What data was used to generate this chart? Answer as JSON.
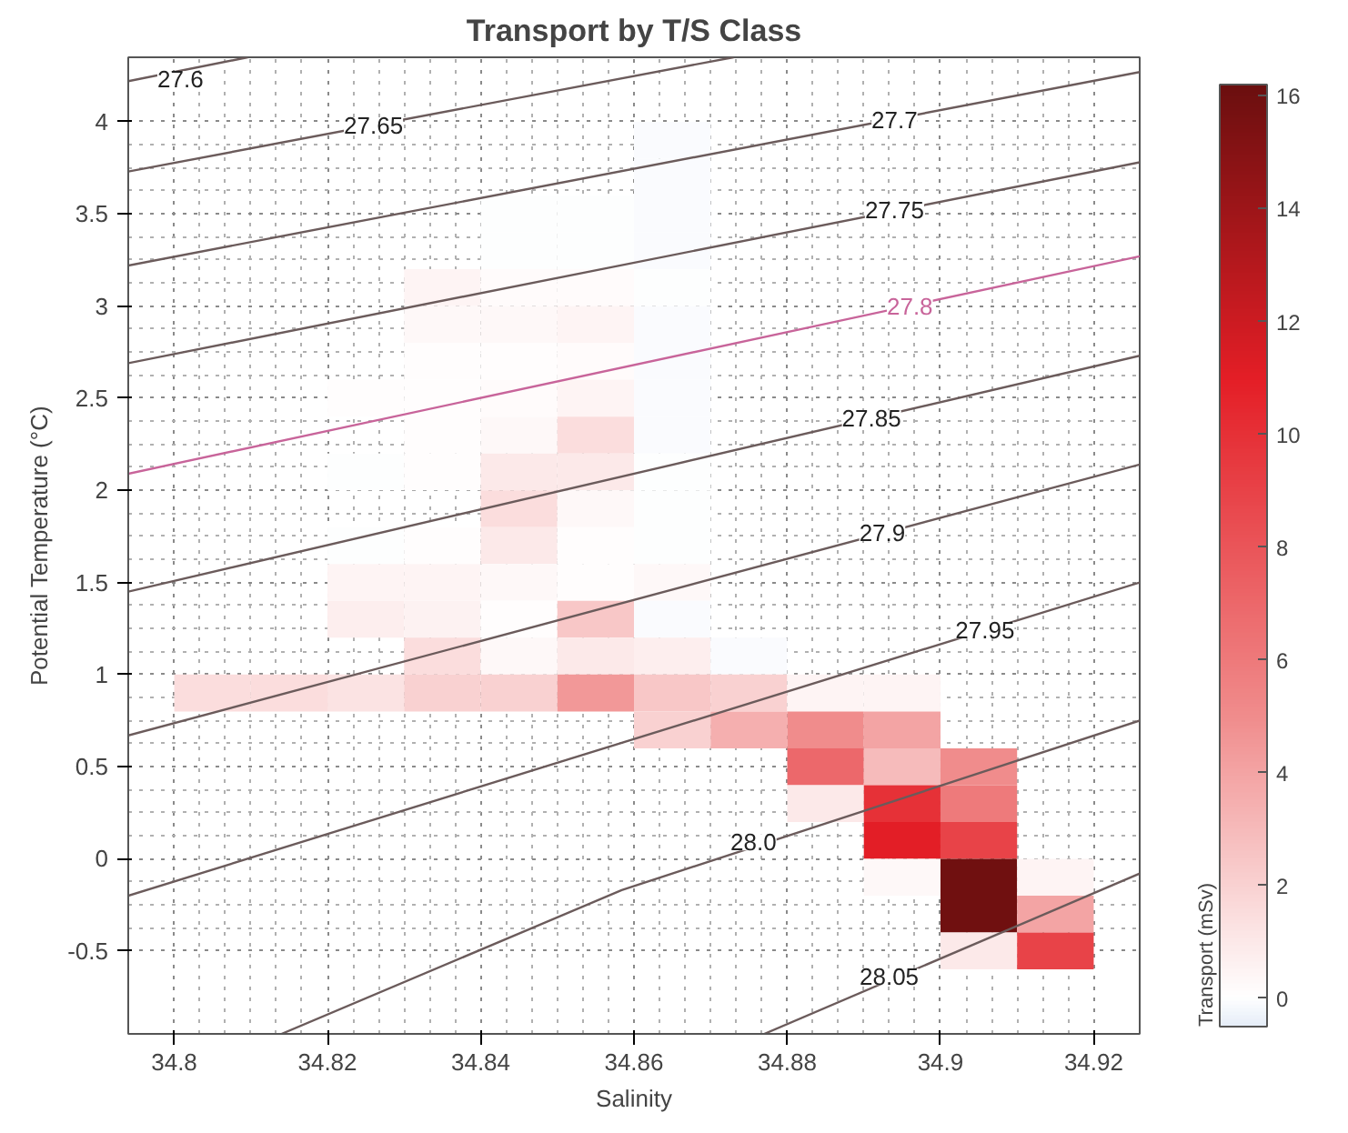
{
  "chart_data": {
    "type": "heatmap",
    "title": "Transport by T/S Class",
    "xlabel": "Salinity",
    "ylabel": "Potential Temperature (°C)",
    "clabel": "Transport (mSv)",
    "x": [
      34.805,
      34.815,
      34.825,
      34.835,
      34.845,
      34.855,
      34.865,
      34.875,
      34.885,
      34.895,
      34.905,
      34.915
    ],
    "y": [
      3.9,
      3.7,
      3.5,
      3.3,
      3.1,
      2.9,
      2.7,
      2.5,
      2.3,
      2.1,
      1.9,
      1.7,
      1.5,
      1.3,
      1.1,
      0.9,
      0.7,
      0.5,
      0.3,
      0.1,
      -0.1,
      -0.3,
      -0.5
    ],
    "cells": [
      [
        null,
        null,
        null,
        null,
        null,
        null,
        -0.1,
        null,
        null,
        null,
        null,
        null
      ],
      [
        null,
        null,
        null,
        null,
        null,
        null,
        -0.1,
        null,
        null,
        null,
        null,
        null
      ],
      [
        null,
        null,
        null,
        null,
        0,
        0,
        -0.1,
        null,
        null,
        null,
        null,
        null
      ],
      [
        null,
        null,
        null,
        null,
        0,
        0,
        -0.1,
        null,
        null,
        null,
        null,
        null
      ],
      [
        null,
        null,
        null,
        0.5,
        0.2,
        0.2,
        0,
        null,
        null,
        null,
        null,
        null
      ],
      [
        null,
        null,
        null,
        0.3,
        0.3,
        0.5,
        -0.1,
        null,
        null,
        null,
        null,
        null
      ],
      [
        null,
        null,
        null,
        0.1,
        0.1,
        0.2,
        -0.1,
        null,
        null,
        null,
        null,
        null
      ],
      [
        null,
        null,
        0.1,
        0.1,
        0.2,
        0.5,
        -0.1,
        null,
        null,
        null,
        null,
        null
      ],
      [
        null,
        null,
        null,
        0.1,
        0.3,
        1.5,
        -0.1,
        null,
        null,
        null,
        null,
        null
      ],
      [
        null,
        null,
        0,
        0.1,
        1,
        1,
        0,
        null,
        null,
        null,
        null,
        null
      ],
      [
        null,
        null,
        null,
        null,
        1.5,
        0.3,
        0,
        null,
        null,
        null,
        null,
        null
      ],
      [
        null,
        null,
        0,
        0.1,
        1,
        0.1,
        0,
        null,
        null,
        null,
        null,
        null
      ],
      [
        null,
        null,
        0.5,
        0.5,
        0.3,
        0.1,
        0.3,
        null,
        null,
        null,
        null,
        null
      ],
      [
        null,
        null,
        0.8,
        0.6,
        0.1,
        2.5,
        -0.1,
        null,
        null,
        null,
        null,
        null
      ],
      [
        null,
        null,
        null,
        1.5,
        0.3,
        1,
        0.8,
        -0.1,
        null,
        null,
        null,
        null
      ],
      [
        1.5,
        1.5,
        1.2,
        2,
        2,
        4.5,
        2.5,
        2,
        0.5,
        0.5,
        null,
        null
      ],
      [
        null,
        null,
        null,
        null,
        null,
        null,
        2,
        3.5,
        5,
        4,
        null,
        null
      ],
      [
        null,
        null,
        null,
        null,
        null,
        null,
        null,
        null,
        7,
        3,
        5,
        null
      ],
      [
        null,
        null,
        null,
        null,
        null,
        null,
        null,
        null,
        1,
        10,
        6,
        null
      ],
      [
        null,
        null,
        null,
        null,
        null,
        null,
        null,
        null,
        null,
        11,
        9,
        null
      ],
      [
        null,
        null,
        null,
        null,
        null,
        null,
        null,
        null,
        null,
        0.3,
        16,
        0.5
      ],
      [
        null,
        null,
        null,
        null,
        null,
        null,
        null,
        null,
        null,
        null,
        16,
        4
      ],
      [
        null,
        null,
        null,
        null,
        null,
        null,
        null,
        null,
        null,
        null,
        1,
        9
      ]
    ],
    "clim": [
      -0.5,
      16.2
    ],
    "cticks": [
      0,
      2,
      4,
      6,
      8,
      10,
      12,
      14,
      16
    ],
    "xlim": [
      34.794,
      34.926
    ],
    "ylim": [
      -0.95,
      4.35
    ],
    "xticks": [
      34.8,
      34.82,
      34.84,
      34.86,
      34.88,
      34.9,
      34.92
    ],
    "yticks": [
      -0.5,
      0,
      0.5,
      1,
      1.5,
      2,
      2.5,
      3,
      3.5,
      4
    ],
    "grid": true,
    "series": [
      {
        "type": "line",
        "color": "#6b5b5b",
        "x": [
          34.794,
          34.8096
        ],
        "values": [
          4.22,
          4.35
        ]
      },
      {
        "type": "line",
        "color": "#6b5b5b",
        "x": [
          34.794,
          34.873
        ],
        "values": [
          3.73,
          4.35
        ]
      },
      {
        "type": "line",
        "color": "#6b5b5b",
        "x": [
          34.794,
          34.926
        ],
        "values": [
          3.22,
          4.27
        ]
      },
      {
        "type": "line",
        "color": "#6b5b5b",
        "x": [
          34.794,
          34.926
        ],
        "values": [
          2.69,
          3.78
        ]
      },
      {
        "type": "line",
        "color": "#c8649a",
        "x": [
          34.794,
          34.926
        ],
        "values": [
          2.09,
          3.27
        ]
      },
      {
        "type": "line",
        "color": "#6b5b5b",
        "x": [
          34.794,
          34.926
        ],
        "values": [
          1.45,
          2.73
        ]
      },
      {
        "type": "line",
        "color": "#6b5b5b",
        "x": [
          34.794,
          34.926
        ],
        "values": [
          0.67,
          2.14
        ]
      },
      {
        "type": "line",
        "color": "#6b5b5b",
        "x": [
          34.794,
          34.926
        ],
        "values": [
          -0.2,
          1.5
        ]
      },
      {
        "type": "line",
        "color": "#6b5b5b",
        "x": [
          34.814,
          34.8584,
          34.926
        ],
        "values": [
          -0.95,
          -0.17,
          0.75
        ]
      },
      {
        "type": "line",
        "color": "#6b5b5b",
        "x": [
          34.877,
          34.926
        ],
        "values": [
          -0.95,
          -0.08
        ]
      }
    ],
    "annotations": [
      {
        "text": "27.6",
        "x": 34.8008,
        "y": 4.23
      },
      {
        "text": "27.65",
        "x": 34.826,
        "y": 3.98
      },
      {
        "text": "27.7",
        "x": 34.894,
        "y": 4.01
      },
      {
        "text": "27.75",
        "x": 34.894,
        "y": 3.52
      },
      {
        "text": "27.8",
        "x": 34.896,
        "y": 3.0
      },
      {
        "text": "27.85",
        "x": 34.891,
        "y": 2.39
      },
      {
        "text": "27.9",
        "x": 34.8924,
        "y": 1.77
      },
      {
        "text": "27.95",
        "x": 34.9058,
        "y": 1.24
      },
      {
        "text": "28.0",
        "x": 34.8756,
        "y": 0.09
      },
      {
        "text": "28.05",
        "x": 34.8933,
        "y": -0.64
      }
    ]
  }
}
